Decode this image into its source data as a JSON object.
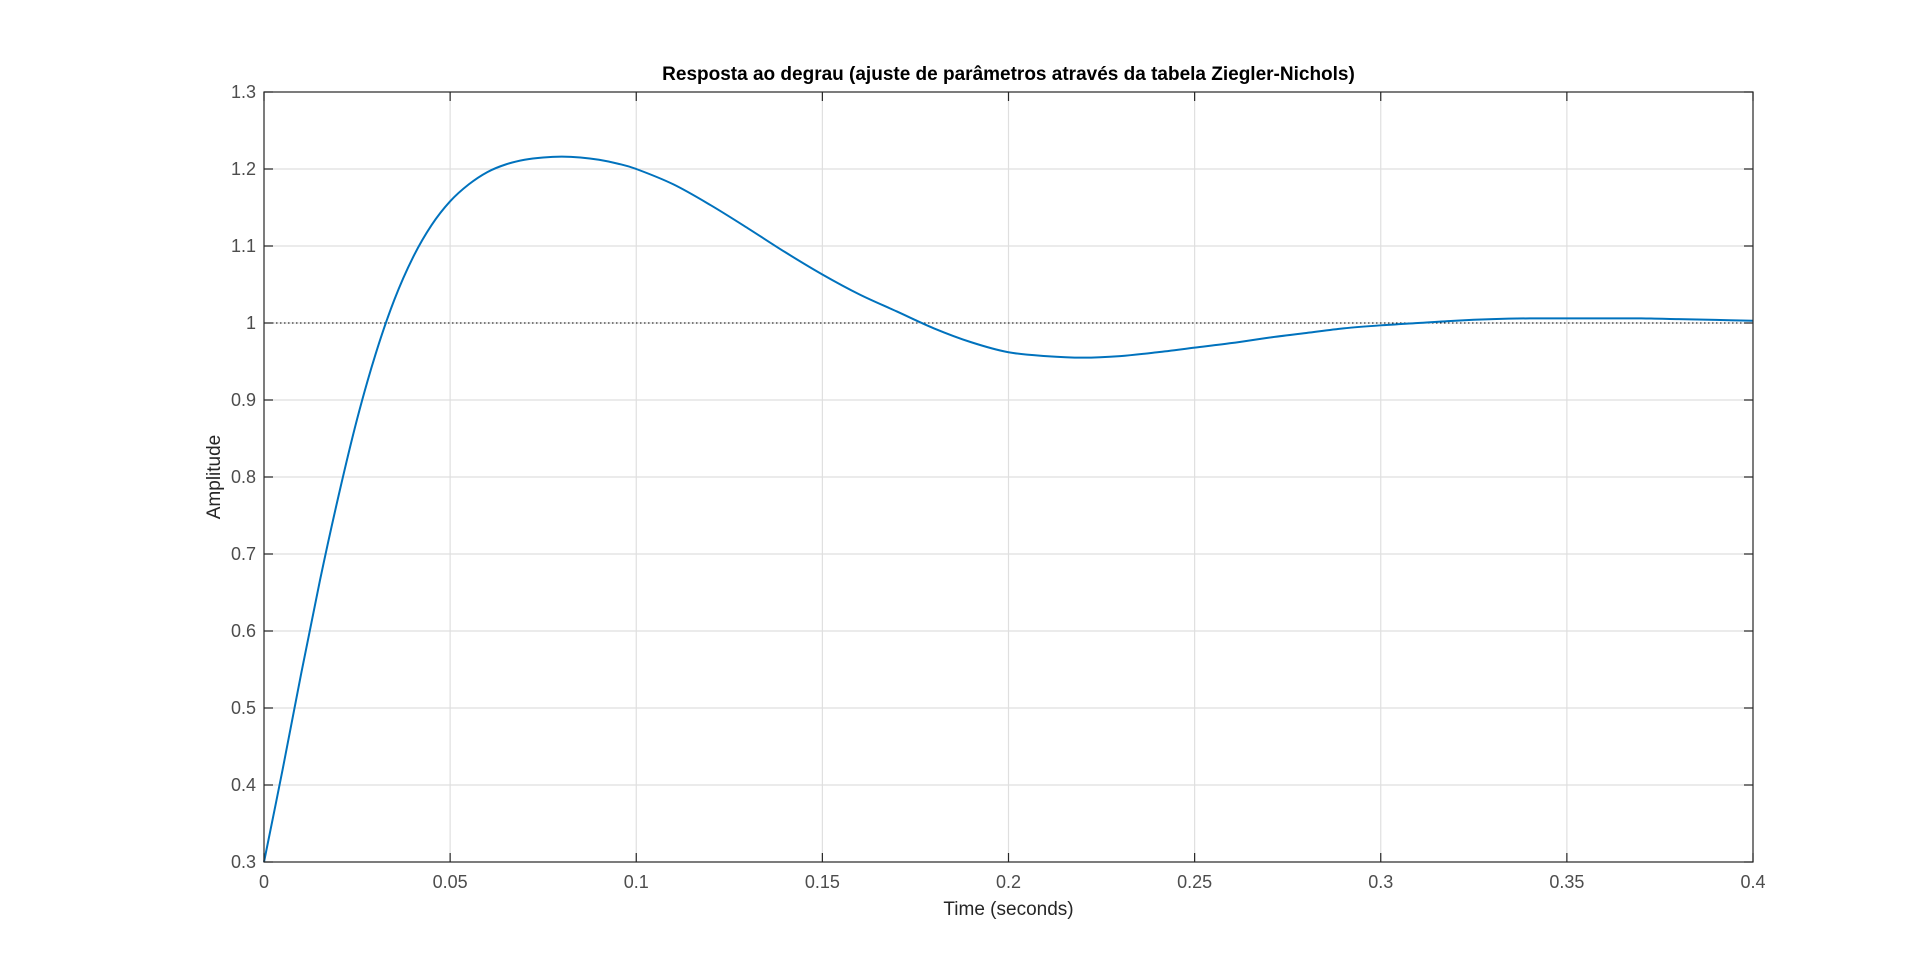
{
  "chart_data": {
    "type": "line",
    "title": "Resposta ao degrau (ajuste de parâmetros através da tabela Ziegler-Nichols)",
    "xlabel": "Time (seconds)",
    "ylabel": "Amplitude",
    "xlim": [
      0,
      0.4
    ],
    "ylim": [
      0.3,
      1.3
    ],
    "xticks": [
      0,
      0.05,
      0.1,
      0.15,
      0.2,
      0.25,
      0.3,
      0.35,
      0.4
    ],
    "xtick_labels": [
      "0",
      "0.05",
      "0.1",
      "0.15",
      "0.2",
      "0.25",
      "0.3",
      "0.35",
      "0.4"
    ],
    "yticks": [
      0.3,
      0.4,
      0.5,
      0.6,
      0.7,
      0.8,
      0.9,
      1.0,
      1.1,
      1.2,
      1.3
    ],
    "ytick_labels": [
      "0.3",
      "0.4",
      "0.5",
      "0.6",
      "0.7",
      "0.8",
      "0.9",
      "1",
      "1.1",
      "1.2",
      "1.3"
    ],
    "grid": true,
    "reference_line": {
      "y": 1.0,
      "style": "dotted",
      "color": "#000000"
    },
    "series": [
      {
        "color": "#0072BD",
        "x": [
          0,
          0.005,
          0.01,
          0.015,
          0.02,
          0.025,
          0.03,
          0.035,
          0.04,
          0.045,
          0.05,
          0.055,
          0.06,
          0.065,
          0.07,
          0.075,
          0.08,
          0.085,
          0.09,
          0.095,
          0.1,
          0.11,
          0.12,
          0.13,
          0.14,
          0.15,
          0.16,
          0.17,
          0.18,
          0.19,
          0.2,
          0.21,
          0.22,
          0.23,
          0.24,
          0.25,
          0.26,
          0.27,
          0.28,
          0.29,
          0.3,
          0.31,
          0.32,
          0.33,
          0.34,
          0.35,
          0.36,
          0.37,
          0.38,
          0.39,
          0.4
        ],
        "y": [
          0.3,
          0.42,
          0.545,
          0.665,
          0.775,
          0.875,
          0.96,
          1.03,
          1.085,
          1.127,
          1.158,
          1.18,
          1.196,
          1.206,
          1.212,
          1.215,
          1.216,
          1.215,
          1.212,
          1.207,
          1.2,
          1.18,
          1.153,
          1.123,
          1.092,
          1.063,
          1.037,
          1.015,
          0.993,
          0.975,
          0.962,
          0.957,
          0.955,
          0.957,
          0.962,
          0.968,
          0.974,
          0.981,
          0.987,
          0.993,
          0.997,
          1.0,
          1.003,
          1.005,
          1.006,
          1.006,
          1.006,
          1.006,
          1.005,
          1.004,
          1.003
        ]
      }
    ]
  }
}
